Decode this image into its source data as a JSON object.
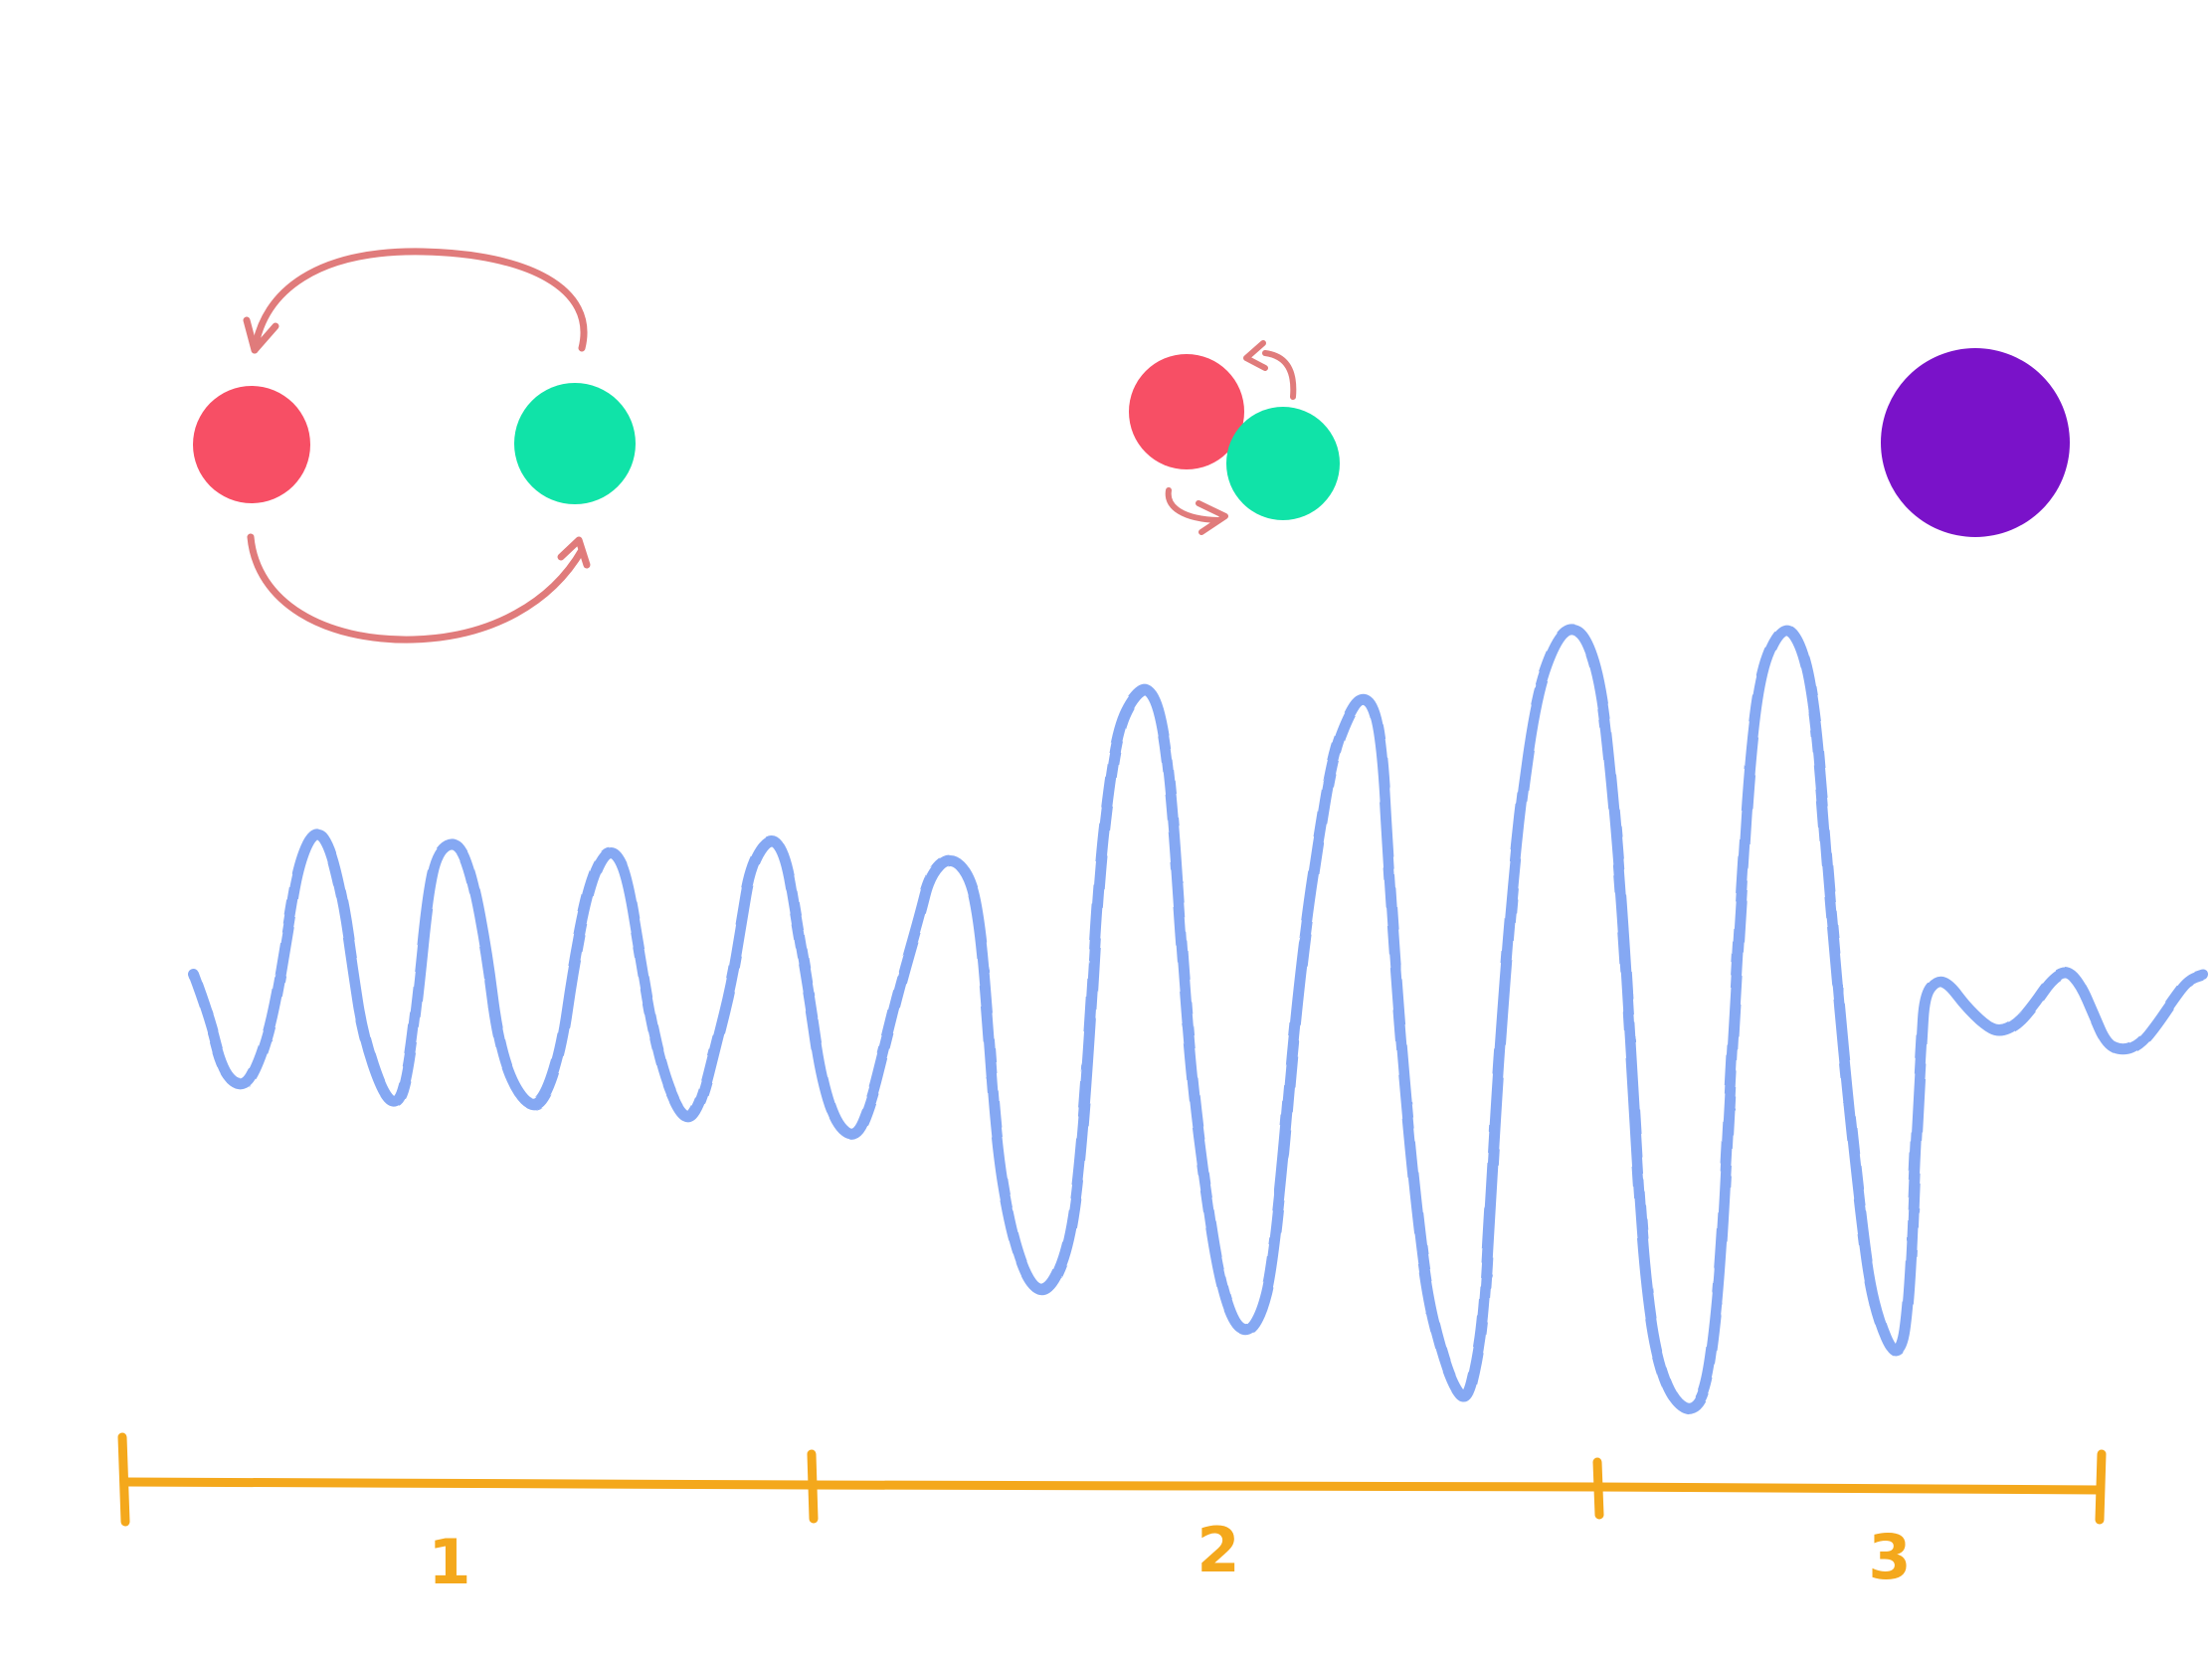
{
  "colors": {
    "red_body": "#f74f65",
    "green_body": "#10e3a8",
    "merged_body": "#7a12c9",
    "orbit_arrow": "#e07b7b",
    "wave": "#85a8f3",
    "timeline": "#f4a81c",
    "background": "#ffffff"
  },
  "stages": [
    {
      "label": "1"
    },
    {
      "label": "2"
    },
    {
      "label": "3"
    }
  ]
}
